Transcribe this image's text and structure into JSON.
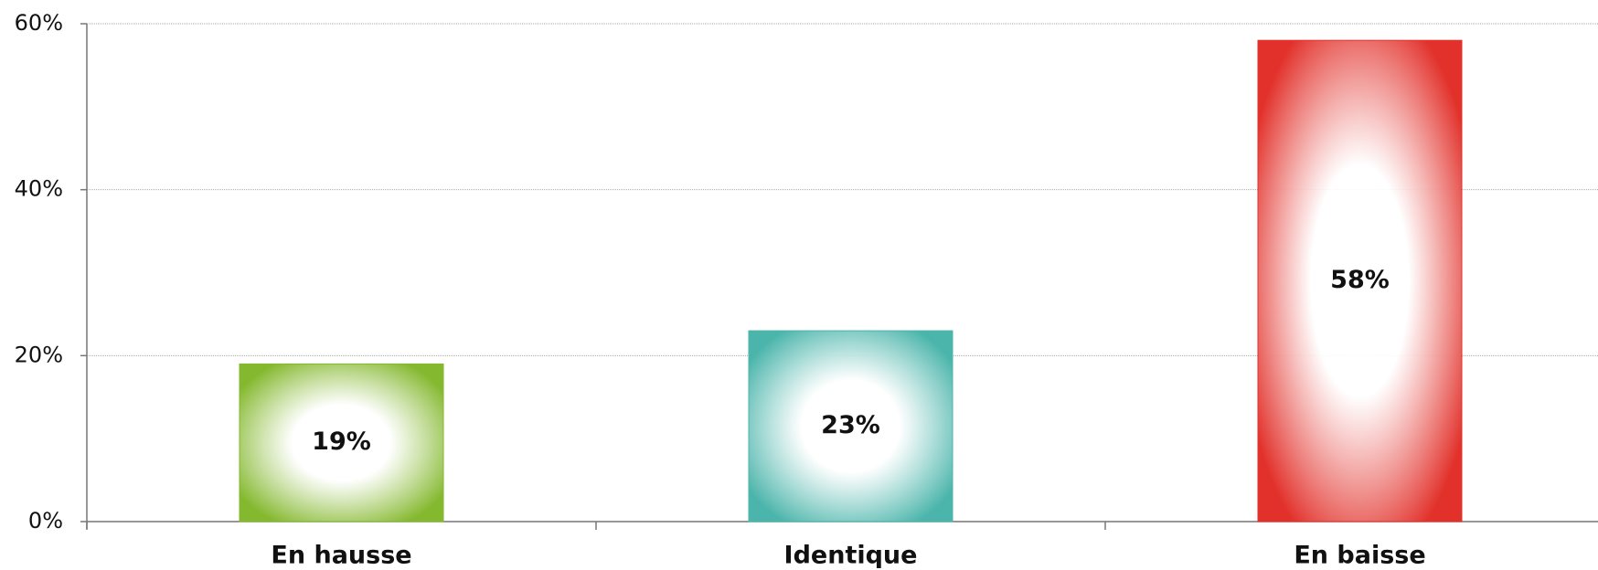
{
  "chart_data": {
    "type": "bar",
    "categories": [
      "En hausse",
      "Identique",
      "En baisse"
    ],
    "values": [
      19,
      23,
      58
    ],
    "value_labels": [
      "19%",
      "23%",
      "58%"
    ],
    "colors": [
      "#84b82e",
      "#4bb5ab",
      "#e2302a"
    ],
    "ylim": [
      0,
      60
    ],
    "yticks": [
      {
        "value": 0,
        "label": "0%"
      },
      {
        "value": 20,
        "label": "20%"
      },
      {
        "value": 40,
        "label": "40%"
      },
      {
        "value": 60,
        "label": "60%"
      }
    ],
    "grid": true
  }
}
